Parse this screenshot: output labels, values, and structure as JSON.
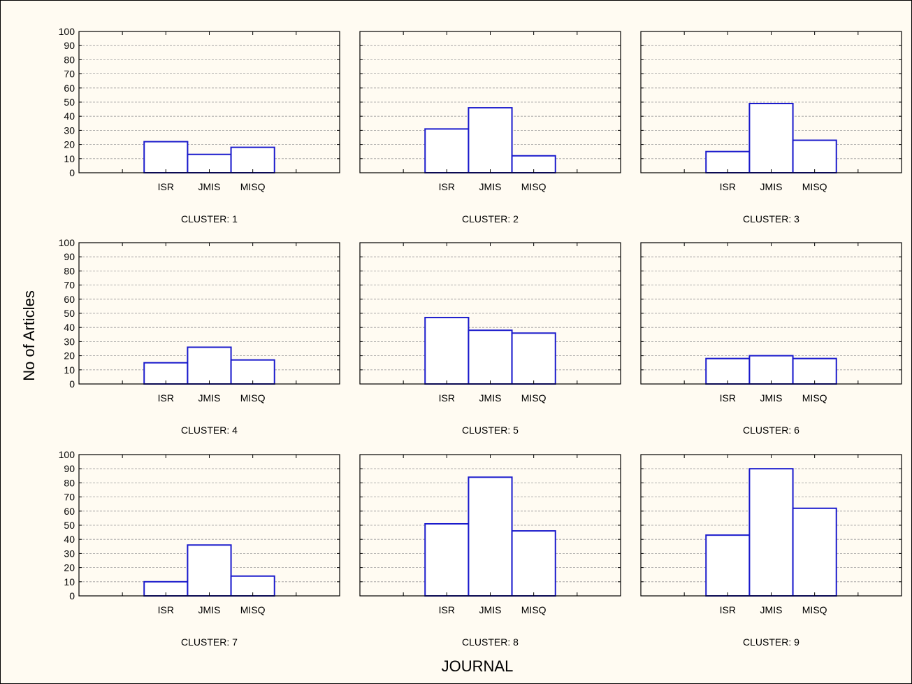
{
  "chart_data": {
    "type": "bar",
    "xlabel": "JOURNAL",
    "ylabel": "No of Articles",
    "ylim": [
      0,
      100
    ],
    "y_ticks": [
      "0",
      "10",
      "20",
      "30",
      "40",
      "50",
      "60",
      "70",
      "80",
      "90",
      "100"
    ],
    "categories": [
      "ISR",
      "JMIS",
      "MISQ"
    ],
    "grid": true,
    "colors": {
      "bar_stroke": "#1a1acc",
      "bar_fill": "#ffffff",
      "frame": "#000000",
      "grid": "#9a9a9a",
      "background": "#fffbf2"
    },
    "panels": [
      {
        "title": "CLUSTER: 1",
        "values": [
          22,
          13,
          18
        ]
      },
      {
        "title": "CLUSTER: 2",
        "values": [
          31,
          46,
          12
        ]
      },
      {
        "title": "CLUSTER: 3",
        "values": [
          15,
          49,
          23
        ]
      },
      {
        "title": "CLUSTER: 4",
        "values": [
          15,
          26,
          17
        ]
      },
      {
        "title": "CLUSTER: 5",
        "values": [
          47,
          38,
          36
        ]
      },
      {
        "title": "CLUSTER: 6",
        "values": [
          18,
          20,
          18
        ]
      },
      {
        "title": "CLUSTER: 7",
        "values": [
          10,
          36,
          14
        ]
      },
      {
        "title": "CLUSTER: 8",
        "values": [
          51,
          84,
          46
        ]
      },
      {
        "title": "CLUSTER: 9",
        "values": [
          43,
          90,
          62
        ]
      }
    ]
  }
}
